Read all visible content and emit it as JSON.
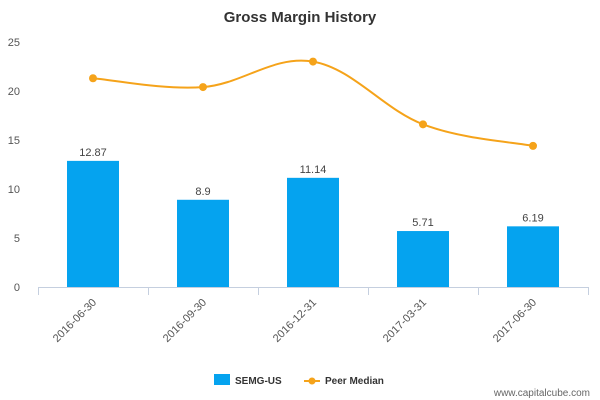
{
  "chart_data": {
    "type": "bar",
    "title": "Gross Margin History",
    "xlabel": "",
    "ylabel": "",
    "ylim": [
      0,
      25
    ],
    "yticks": [
      0,
      5,
      10,
      15,
      20,
      25
    ],
    "categories": [
      "2016-06-30",
      "2016-09-30",
      "2016-12-31",
      "2017-03-31",
      "2017-06-30"
    ],
    "series": [
      {
        "name": "SEMG-US",
        "type": "bar",
        "color": "#05a3ef",
        "values": [
          12.87,
          8.9,
          11.14,
          5.71,
          6.19
        ],
        "labels": [
          "12.87",
          "8.9",
          "11.14",
          "5.71",
          "6.19"
        ]
      },
      {
        "name": "Peer Median",
        "type": "line",
        "color": "#f5a31a",
        "values": [
          21.3,
          20.4,
          23.0,
          16.6,
          14.4
        ]
      }
    ],
    "legend_position": "bottom-center",
    "credit": "www.capitalcube.com"
  }
}
